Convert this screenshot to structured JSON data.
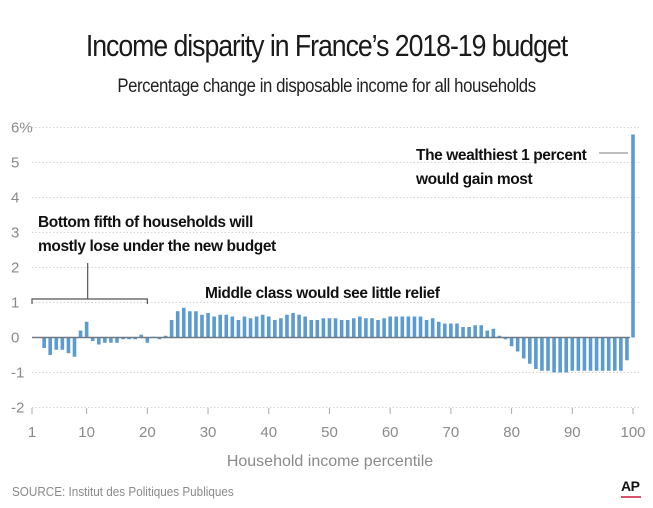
{
  "chart_data": {
    "type": "bar",
    "title": "Income disparity in France’s 2018-19 budget",
    "subtitle": "Percentage change in disposable income for all households",
    "xlabel": "Household income percentile",
    "ylabel": "",
    "ylim": [
      -2,
      6
    ],
    "yticks": [
      {
        "value": 6,
        "label": "6%"
      },
      {
        "value": 5,
        "label": "5"
      },
      {
        "value": 4,
        "label": "4"
      },
      {
        "value": 3,
        "label": "3"
      },
      {
        "value": 2,
        "label": "2"
      },
      {
        "value": 1,
        "label": "1"
      },
      {
        "value": 0,
        "label": "0"
      },
      {
        "value": -1,
        "label": "-1"
      },
      {
        "value": -2,
        "label": "-2"
      }
    ],
    "xticks": [
      {
        "value": 1,
        "label": "1"
      },
      {
        "value": 10,
        "label": "10"
      },
      {
        "value": 20,
        "label": "20"
      },
      {
        "value": 30,
        "label": "30"
      },
      {
        "value": 40,
        "label": "40"
      },
      {
        "value": 50,
        "label": "50"
      },
      {
        "value": 60,
        "label": "60"
      },
      {
        "value": 70,
        "label": "70"
      },
      {
        "value": 80,
        "label": "80"
      },
      {
        "value": 90,
        "label": "90"
      },
      {
        "value": 100,
        "label": "100"
      }
    ],
    "xlim": [
      1,
      100
    ],
    "grid": true,
    "bar_color": "#5b9bd0",
    "x": [
      1,
      2,
      3,
      4,
      5,
      6,
      7,
      8,
      9,
      10,
      11,
      12,
      13,
      14,
      15,
      16,
      17,
      18,
      19,
      20,
      21,
      22,
      23,
      24,
      25,
      26,
      27,
      28,
      29,
      30,
      31,
      32,
      33,
      34,
      35,
      36,
      37,
      38,
      39,
      40,
      41,
      42,
      43,
      44,
      45,
      46,
      47,
      48,
      49,
      50,
      51,
      52,
      53,
      54,
      55,
      56,
      57,
      58,
      59,
      60,
      61,
      62,
      63,
      64,
      65,
      66,
      67,
      68,
      69,
      70,
      71,
      72,
      73,
      74,
      75,
      76,
      77,
      78,
      79,
      80,
      81,
      82,
      83,
      84,
      85,
      86,
      87,
      88,
      89,
      90,
      91,
      92,
      93,
      94,
      95,
      96,
      97,
      98,
      99,
      100
    ],
    "values": [
      0,
      0,
      -0.3,
      -0.5,
      -0.35,
      -0.35,
      -0.45,
      -0.55,
      0.2,
      0.45,
      -0.1,
      -0.2,
      -0.15,
      -0.15,
      -0.15,
      -0.05,
      -0.05,
      -0.05,
      0.08,
      -0.15,
      0.02,
      -0.05,
      0.05,
      0.5,
      0.75,
      0.85,
      0.75,
      0.75,
      0.65,
      0.7,
      0.6,
      0.65,
      0.65,
      0.6,
      0.5,
      0.6,
      0.55,
      0.6,
      0.65,
      0.6,
      0.5,
      0.55,
      0.65,
      0.7,
      0.65,
      0.6,
      0.5,
      0.5,
      0.55,
      0.55,
      0.55,
      0.5,
      0.5,
      0.55,
      0.6,
      0.55,
      0.55,
      0.5,
      0.55,
      0.6,
      0.6,
      0.6,
      0.6,
      0.6,
      0.6,
      0.5,
      0.55,
      0.45,
      0.4,
      0.4,
      0.4,
      0.3,
      0.3,
      0.35,
      0.35,
      0.2,
      0.25,
      0.05,
      -0.05,
      -0.25,
      -0.4,
      -0.6,
      -0.75,
      -0.9,
      -0.95,
      -0.95,
      -1.0,
      -1.0,
      -1.0,
      -0.95,
      -0.95,
      -0.95,
      -0.95,
      -0.95,
      -0.95,
      -0.95,
      -0.95,
      -0.95,
      -0.65,
      5.8
    ],
    "annotations": [
      {
        "id": "bottom",
        "lines": [
          "Bottom fifth of households will",
          "mostly lose under the new budget"
        ],
        "range": [
          1,
          20
        ]
      },
      {
        "id": "middle",
        "lines": [
          "Middle class would see little relief"
        ]
      },
      {
        "id": "top",
        "lines": [
          "The wealthiest 1 percent",
          "would gain most"
        ],
        "target": 100
      }
    ]
  },
  "footer": {
    "source": "SOURCE: Institut des Politiques Publiques",
    "logo": "AP"
  }
}
